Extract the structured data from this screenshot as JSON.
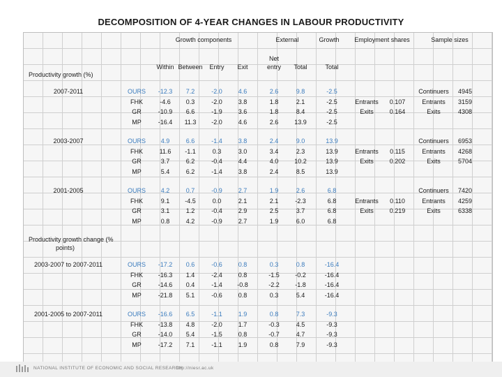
{
  "title": "DECOMPOSITION OF 4-YEAR CHANGES IN LABOUR PRODUCTIVITY",
  "headers": {
    "growth_components": "Growth components",
    "external": "External",
    "growth": "Growth",
    "employment_shares": "Employment shares",
    "sample_sizes": "Sample sizes",
    "within": "Within",
    "between": "Between",
    "entry": "Entry",
    "exit": "Exit",
    "net_entry_1": "Net",
    "net_entry_2": "entry",
    "total_ext": "Total",
    "total_growth": "Total"
  },
  "sections": {
    "growth": "Productivity growth (%)",
    "change_1": "Productivity growth change (%",
    "change_2": "points)"
  },
  "periods": [
    {
      "label": "2007-2011",
      "rows": [
        {
          "method": "OURS",
          "within": "-12.3",
          "between": "7.2",
          "entry": "-2.0",
          "exit": "4.6",
          "net": "2.6",
          "total": "9.8",
          "growth": "-2.5"
        },
        {
          "method": "FHK",
          "within": "-4.6",
          "between": "0.3",
          "entry": "-2.0",
          "exit": "3.8",
          "net": "1.8",
          "total": "2.1",
          "growth": "-2.5"
        },
        {
          "method": "GR",
          "within": "-10.9",
          "between": "6.6",
          "entry": "-1.9",
          "exit": "3.6",
          "net": "1.8",
          "total": "8.4",
          "growth": "-2.5"
        },
        {
          "method": "MP",
          "within": "-16.4",
          "between": "11.3",
          "entry": "-2.0",
          "exit": "4.6",
          "net": "2.6",
          "total": "13.9",
          "growth": "-2.5"
        }
      ],
      "shares": [
        {
          "label": "Entrants",
          "value": "0.107"
        },
        {
          "label": "Exits",
          "value": "0.164"
        }
      ],
      "samples": [
        {
          "label": "Continuers",
          "value": "4945"
        },
        {
          "label": "Entrants",
          "value": "3159"
        },
        {
          "label": "Exits",
          "value": "4308"
        }
      ]
    },
    {
      "label": "2003-2007",
      "rows": [
        {
          "method": "OURS",
          "within": "4.9",
          "between": "6.6",
          "entry": "-1.4",
          "exit": "3.8",
          "net": "2.4",
          "total": "9.0",
          "growth": "13.9"
        },
        {
          "method": "FHK",
          "within": "11.6",
          "between": "-1.1",
          "entry": "0.3",
          "exit": "3.0",
          "net": "3.4",
          "total": "2.3",
          "growth": "13.9"
        },
        {
          "method": "GR",
          "within": "3.7",
          "between": "6.2",
          "entry": "-0.4",
          "exit": "4.4",
          "net": "4.0",
          "total": "10.2",
          "growth": "13.9"
        },
        {
          "method": "MP",
          "within": "5.4",
          "between": "6.2",
          "entry": "-1.4",
          "exit": "3.8",
          "net": "2.4",
          "total": "8.5",
          "growth": "13.9"
        }
      ],
      "shares": [
        {
          "label": "Entrants",
          "value": "0.115"
        },
        {
          "label": "Exits",
          "value": "0.202"
        }
      ],
      "samples": [
        {
          "label": "Continuers",
          "value": "6953"
        },
        {
          "label": "Entrants",
          "value": "4268"
        },
        {
          "label": "Exits",
          "value": "5704"
        }
      ]
    },
    {
      "label": "2001-2005",
      "rows": [
        {
          "method": "OURS",
          "within": "4.2",
          "between": "0.7",
          "entry": "-0.9",
          "exit": "2.7",
          "net": "1.9",
          "total": "2.6",
          "growth": "6.8"
        },
        {
          "method": "FHK",
          "within": "9.1",
          "between": "-4.5",
          "entry": "0.0",
          "exit": "2.1",
          "net": "2.1",
          "total": "-2.3",
          "growth": "6.8"
        },
        {
          "method": "GR",
          "within": "3.1",
          "between": "1.2",
          "entry": "-0.4",
          "exit": "2.9",
          "net": "2.5",
          "total": "3.7",
          "growth": "6.8"
        },
        {
          "method": "MP",
          "within": "0.8",
          "between": "4.2",
          "entry": "-0.9",
          "exit": "2.7",
          "net": "1.9",
          "total": "6.0",
          "growth": "6.8"
        }
      ],
      "shares": [
        {
          "label": "Entrants",
          "value": "0.110"
        },
        {
          "label": "Exits",
          "value": "0.219"
        }
      ],
      "samples": [
        {
          "label": "Continuers",
          "value": "7420"
        },
        {
          "label": "Entrants",
          "value": "4259"
        },
        {
          "label": "Exits",
          "value": "6338"
        }
      ]
    },
    {
      "label": "2003-2007 to 2007-2011",
      "rows": [
        {
          "method": "OURS",
          "within": "-17.2",
          "between": "0.6",
          "entry": "-0.6",
          "exit": "0.8",
          "net": "0.3",
          "total": "0.8",
          "growth": "-16.4"
        },
        {
          "method": "FHK",
          "within": "-16.3",
          "between": "1.4",
          "entry": "-2.4",
          "exit": "0.8",
          "net": "-1.5",
          "total": "-0.2",
          "growth": "-16.4"
        },
        {
          "method": "GR",
          "within": "-14.6",
          "between": "0.4",
          "entry": "-1.4",
          "exit": "-0.8",
          "net": "-2.2",
          "total": "-1.8",
          "growth": "-16.4"
        },
        {
          "method": "MP",
          "within": "-21.8",
          "between": "5.1",
          "entry": "-0.6",
          "exit": "0.8",
          "net": "0.3",
          "total": "5.4",
          "growth": "-16.4"
        }
      ]
    },
    {
      "label": "2001-2005 to 2007-2011",
      "rows": [
        {
          "method": "OURS",
          "within": "-16.6",
          "between": "6.5",
          "entry": "-1.1",
          "exit": "1.9",
          "net": "0.8",
          "total": "7.3",
          "growth": "-9.3"
        },
        {
          "method": "FHK",
          "within": "-13.8",
          "between": "4.8",
          "entry": "-2.0",
          "exit": "1.7",
          "net": "-0.3",
          "total": "4.5",
          "growth": "-9.3"
        },
        {
          "method": "GR",
          "within": "-14.0",
          "between": "5.4",
          "entry": "-1.5",
          "exit": "0.8",
          "net": "-0.7",
          "total": "4.7",
          "growth": "-9.3"
        },
        {
          "method": "MP",
          "within": "-17.2",
          "between": "7.1",
          "entry": "-1.1",
          "exit": "1.9",
          "net": "0.8",
          "total": "7.9",
          "growth": "-9.3"
        }
      ]
    }
  ],
  "footer": {
    "institute": "NATIONAL INSTITUTE OF ECONOMIC AND SOCIAL RESEARCH",
    "url": "http://niesr.ac.uk"
  },
  "colors": {
    "highlight": "#3a7bbd",
    "text": "#1a1a1a",
    "grid": "#cfcfcf"
  }
}
